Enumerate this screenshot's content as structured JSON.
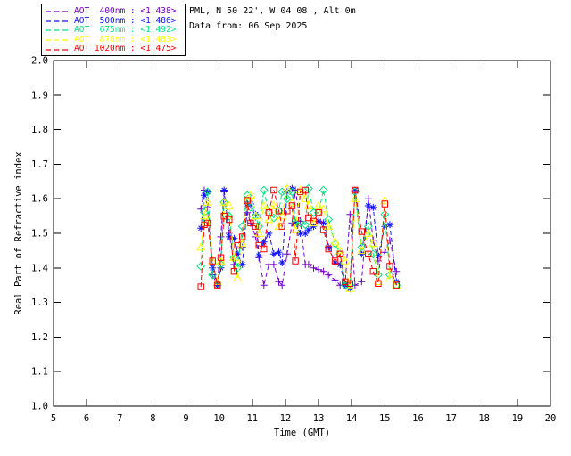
{
  "header": {
    "site_line": "PML, N 50 22', W 04 08', Alt 0m",
    "date_line": "Data from: 06 Sep 2025"
  },
  "chart_data": {
    "type": "line",
    "line_style": "dashed",
    "grid": false,
    "legend_position": "top-left-outside",
    "xlabel": "Time (GMT)",
    "ylabel": "Real Part of Refractive index",
    "xlim": [
      5,
      20
    ],
    "ylim": [
      1.0,
      2.0
    ],
    "xticks": [
      5,
      6,
      7,
      8,
      9,
      10,
      11,
      12,
      13,
      14,
      15,
      16,
      17,
      18,
      19,
      20
    ],
    "yticks": [
      1.0,
      1.1,
      1.2,
      1.3,
      1.4,
      1.5,
      1.6,
      1.7,
      1.8,
      1.9,
      2.0
    ],
    "x": [
      9.45,
      9.55,
      9.65,
      9.8,
      9.95,
      10.05,
      10.15,
      10.3,
      10.45,
      10.55,
      10.7,
      10.85,
      10.95,
      11.1,
      11.2,
      11.35,
      11.5,
      11.65,
      11.8,
      11.9,
      12.05,
      12.2,
      12.3,
      12.45,
      12.6,
      12.7,
      12.85,
      13.0,
      13.15,
      13.3,
      13.5,
      13.65,
      13.8,
      13.95,
      14.1,
      14.3,
      14.5,
      14.65,
      14.8,
      15.0,
      15.15,
      15.35
    ],
    "series": [
      {
        "name": "AOT 400nm",
        "legend_label": "AOT  400nm : <1.438>",
        "mean_value": "<1.438>",
        "color": "#7100C8",
        "marker": "plus",
        "values": [
          1.57,
          1.625,
          1.575,
          1.38,
          1.35,
          1.49,
          1.62,
          1.5,
          1.41,
          1.44,
          1.46,
          1.56,
          1.53,
          1.49,
          1.43,
          1.35,
          1.41,
          1.41,
          1.36,
          1.35,
          1.44,
          1.53,
          1.625,
          1.535,
          1.41,
          1.41,
          1.4,
          1.395,
          1.39,
          1.38,
          1.365,
          1.35,
          1.35,
          1.555,
          1.35,
          1.36,
          1.6,
          1.48,
          1.42,
          1.445,
          1.48,
          1.39
        ]
      },
      {
        "name": "AOT 500nm",
        "legend_label": "AOT  500nm : <1.486>",
        "mean_value": "<1.486>",
        "color": "#1414FA",
        "marker": "asterisk",
        "values": [
          1.515,
          1.61,
          1.62,
          1.4,
          1.35,
          1.4,
          1.625,
          1.49,
          1.485,
          1.44,
          1.41,
          1.585,
          1.585,
          1.555,
          1.435,
          1.475,
          1.5,
          1.44,
          1.445,
          1.415,
          1.62,
          1.63,
          1.53,
          1.5,
          1.5,
          1.51,
          1.52,
          1.535,
          1.53,
          1.46,
          1.415,
          1.41,
          1.35,
          1.34,
          1.625,
          1.44,
          1.58,
          1.575,
          1.435,
          1.52,
          1.525,
          1.36
        ]
      },
      {
        "name": "AOT 675nm",
        "legend_label": "AOT  675nm : <1.492>",
        "mean_value": "<1.492>",
        "color": "#00E57E",
        "marker": "diamond",
        "values": [
          1.405,
          1.56,
          1.62,
          1.38,
          1.35,
          1.41,
          1.59,
          1.55,
          1.43,
          1.4,
          1.52,
          1.61,
          1.575,
          1.55,
          1.52,
          1.625,
          1.56,
          1.545,
          1.565,
          1.62,
          1.6,
          1.62,
          1.53,
          1.53,
          1.525,
          1.63,
          1.56,
          1.56,
          1.625,
          1.54,
          1.47,
          1.44,
          1.35,
          1.35,
          1.62,
          1.46,
          1.52,
          1.44,
          1.38,
          1.555,
          1.38,
          1.35
        ]
      },
      {
        "name": "AOT 870nm",
        "legend_label": "AOT  870nm : <1.483>",
        "mean_value": "<1.483>",
        "color": "#FFFF00",
        "marker": "triangle",
        "values": [
          1.46,
          1.55,
          1.59,
          1.42,
          1.36,
          1.42,
          1.59,
          1.58,
          1.43,
          1.37,
          1.47,
          1.595,
          1.61,
          1.55,
          1.5,
          1.58,
          1.54,
          1.58,
          1.52,
          1.55,
          1.63,
          1.59,
          1.51,
          1.625,
          1.6,
          1.58,
          1.53,
          1.58,
          1.57,
          1.52,
          1.475,
          1.45,
          1.42,
          1.34,
          1.6,
          1.45,
          1.5,
          1.47,
          1.36,
          1.595,
          1.37,
          1.35
        ]
      },
      {
        "name": "AOT 1020nm",
        "legend_label": "AOT 1020nm : <1.475>",
        "mean_value": "<1.475>",
        "color": "#FF0000",
        "marker": "square",
        "values": [
          1.345,
          1.525,
          1.53,
          1.42,
          1.35,
          1.43,
          1.55,
          1.54,
          1.39,
          1.465,
          1.49,
          1.595,
          1.53,
          1.52,
          1.465,
          1.455,
          1.56,
          1.625,
          1.565,
          1.52,
          1.565,
          1.58,
          1.42,
          1.62,
          1.625,
          1.545,
          1.535,
          1.56,
          1.51,
          1.455,
          1.42,
          1.44,
          1.36,
          1.355,
          1.625,
          1.505,
          1.44,
          1.39,
          1.355,
          1.585,
          1.405,
          1.35
        ]
      }
    ]
  }
}
